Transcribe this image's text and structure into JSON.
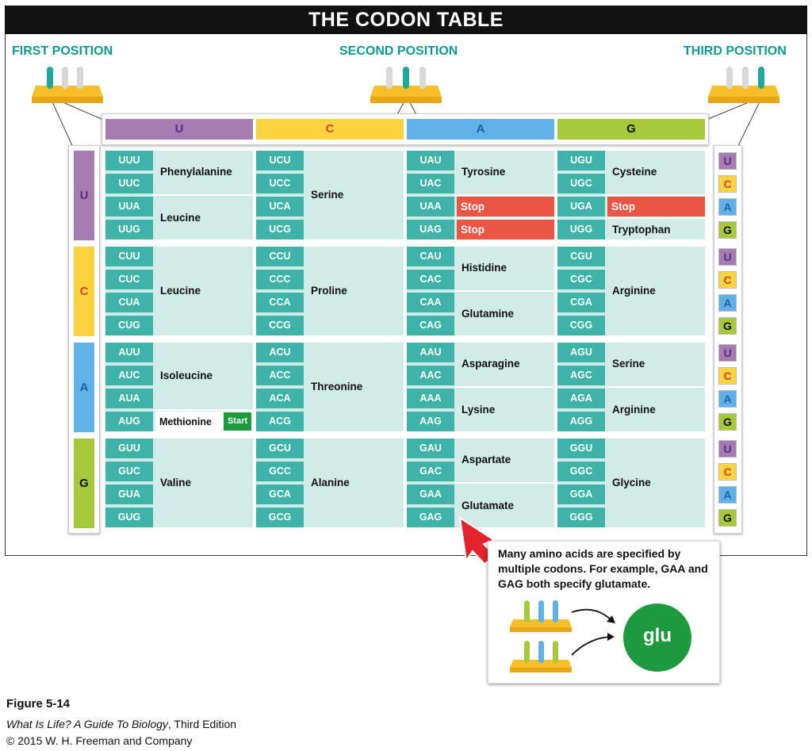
{
  "title": "THE CODON TABLE",
  "labels": {
    "first": "FIRST POSITION",
    "second": "SECOND POSITION",
    "third": "THIRD POSITION"
  },
  "bases": [
    "U",
    "C",
    "A",
    "G"
  ],
  "base_colors": {
    "U": "#a57bb0",
    "C": "#fbd33f",
    "A": "#5fb1e6",
    "G": "#a6c93b"
  },
  "base_text_colors": {
    "U": "#5a2d82",
    "C": "#d5452a",
    "A": "#1d5fa8",
    "G": "#111111"
  },
  "columns": [
    {
      "codons": [
        "UUU",
        "UUC",
        "UUA",
        "UUG",
        "CUU",
        "CUC",
        "CUA",
        "CUG",
        "AUU",
        "AUC",
        "AUA",
        "AUG",
        "GUU",
        "GUC",
        "GUA",
        "GUG"
      ],
      "aa": [
        {
          "name": "Phenylalanine",
          "rows": [
            0,
            1
          ]
        },
        {
          "name": "Leucine",
          "rows": [
            2,
            3
          ]
        },
        {
          "name": "Leucine",
          "rows": [
            4,
            7
          ]
        },
        {
          "name": "Isoleucine",
          "rows": [
            8,
            10
          ]
        },
        {
          "name": "Methionine",
          "rows": [
            11,
            11
          ],
          "badge": "Start"
        },
        {
          "name": "Valine",
          "rows": [
            12,
            15
          ]
        }
      ]
    },
    {
      "codons": [
        "UCU",
        "UCC",
        "UCA",
        "UCG",
        "CCU",
        "CCC",
        "CCA",
        "CCG",
        "ACU",
        "ACC",
        "ACA",
        "ACG",
        "GCU",
        "GCC",
        "GCA",
        "GCG"
      ],
      "aa": [
        {
          "name": "Serine",
          "rows": [
            0,
            3
          ]
        },
        {
          "name": "Proline",
          "rows": [
            4,
            7
          ]
        },
        {
          "name": "Threonine",
          "rows": [
            8,
            11
          ]
        },
        {
          "name": "Alanine",
          "rows": [
            12,
            15
          ]
        }
      ]
    },
    {
      "codons": [
        "UAU",
        "UAC",
        "UAA",
        "UAG",
        "CAU",
        "CAC",
        "CAA",
        "CAG",
        "AAU",
        "AAC",
        "AAA",
        "AAG",
        "GAU",
        "GAC",
        "GAA",
        "GAG"
      ],
      "aa": [
        {
          "name": "Tyrosine",
          "rows": [
            0,
            1
          ]
        },
        {
          "name": "Stop",
          "rows": [
            2,
            2
          ],
          "stop": true
        },
        {
          "name": "Stop",
          "rows": [
            3,
            3
          ],
          "stop": true
        },
        {
          "name": "Histidine",
          "rows": [
            4,
            5
          ]
        },
        {
          "name": "Glutamine",
          "rows": [
            6,
            7
          ]
        },
        {
          "name": "Asparagine",
          "rows": [
            8,
            9
          ]
        },
        {
          "name": "Lysine",
          "rows": [
            10,
            11
          ]
        },
        {
          "name": "Aspartate",
          "rows": [
            12,
            13
          ]
        },
        {
          "name": "Glutamate",
          "rows": [
            14,
            15
          ]
        }
      ]
    },
    {
      "codons": [
        "UGU",
        "UGC",
        "UGA",
        "UGG",
        "CGU",
        "CGC",
        "CGA",
        "CGG",
        "AGU",
        "AGC",
        "AGA",
        "AGG",
        "GGU",
        "GGC",
        "GGA",
        "GGG"
      ],
      "aa": [
        {
          "name": "Cysteine",
          "rows": [
            0,
            1
          ]
        },
        {
          "name": "Stop",
          "rows": [
            2,
            2
          ],
          "stop": true
        },
        {
          "name": "Tryptophan",
          "rows": [
            3,
            3
          ]
        },
        {
          "name": "Arginine",
          "rows": [
            4,
            7
          ]
        },
        {
          "name": "Serine",
          "rows": [
            8,
            9
          ]
        },
        {
          "name": "Arginine",
          "rows": [
            10,
            11
          ]
        },
        {
          "name": "Glycine",
          "rows": [
            12,
            15
          ]
        }
      ]
    }
  ],
  "callout": {
    "text": "Many amino acids are specified by multiple codons. For example, GAA and GAG both specify glutamate.",
    "amino_label": "glu"
  },
  "caption": {
    "figure": "Figure 5-14",
    "book": "What Is Life? A Guide To Biology",
    "edition": ", Third Edition",
    "copyright": "© 2015 W. H. Freeman and Company"
  }
}
